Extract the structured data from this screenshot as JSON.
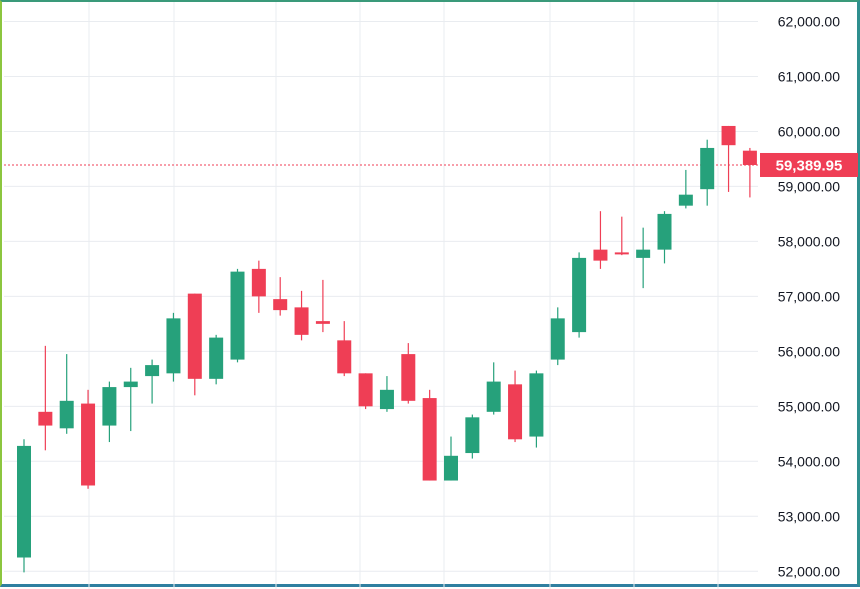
{
  "chart_data": {
    "type": "candlestick",
    "ylim": [
      51950,
      62100
    ],
    "y_ticks": [
      "62,000.00",
      "61,000.00",
      "60,000.00",
      "59,000.00",
      "58,000.00",
      "57,000.00",
      "56,000.00",
      "55,000.00",
      "54,000.00",
      "53,000.00",
      "52,000.00"
    ],
    "y_tick_values": [
      62000,
      61000,
      60000,
      59000,
      58000,
      57000,
      56000,
      55000,
      54000,
      53000,
      52000
    ],
    "last_price": {
      "value": 59389.95,
      "label": "59,389.95"
    },
    "grid": true,
    "colors": {
      "up": "#26a17b",
      "down": "#ef3e55",
      "grid": "#e9ecf0",
      "price_line": "#ef3e55"
    },
    "candles": [
      {
        "o": 52250,
        "h": 54400,
        "l": 51980,
        "c": 54280
      },
      {
        "o": 54900,
        "h": 56100,
        "l": 54200,
        "c": 54650
      },
      {
        "o": 54600,
        "h": 55950,
        "l": 54500,
        "c": 55100
      },
      {
        "o": 55050,
        "h": 55300,
        "l": 53500,
        "c": 53560
      },
      {
        "o": 54650,
        "h": 55450,
        "l": 54350,
        "c": 55350
      },
      {
        "o": 55350,
        "h": 55700,
        "l": 54550,
        "c": 55450
      },
      {
        "o": 55550,
        "h": 55850,
        "l": 55050,
        "c": 55750
      },
      {
        "o": 55600,
        "h": 56700,
        "l": 55450,
        "c": 56600
      },
      {
        "o": 57050,
        "h": 57050,
        "l": 55200,
        "c": 55500
      },
      {
        "o": 55500,
        "h": 56300,
        "l": 55400,
        "c": 56250
      },
      {
        "o": 55850,
        "h": 57500,
        "l": 55800,
        "c": 57450
      },
      {
        "o": 57500,
        "h": 57650,
        "l": 56700,
        "c": 57000
      },
      {
        "o": 56950,
        "h": 57350,
        "l": 56650,
        "c": 56750
      },
      {
        "o": 56800,
        "h": 57100,
        "l": 56200,
        "c": 56300
      },
      {
        "o": 56550,
        "h": 57300,
        "l": 56350,
        "c": 56500
      },
      {
        "o": 56200,
        "h": 56550,
        "l": 55550,
        "c": 55600
      },
      {
        "o": 55600,
        "h": 55600,
        "l": 54950,
        "c": 55000
      },
      {
        "o": 54950,
        "h": 55550,
        "l": 54900,
        "c": 55300
      },
      {
        "o": 55950,
        "h": 56150,
        "l": 55050,
        "c": 55100
      },
      {
        "o": 55150,
        "h": 55300,
        "l": 53650,
        "c": 53650
      },
      {
        "o": 53650,
        "h": 54450,
        "l": 53650,
        "c": 54100
      },
      {
        "o": 54150,
        "h": 54850,
        "l": 54050,
        "c": 54800
      },
      {
        "o": 54900,
        "h": 55800,
        "l": 54850,
        "c": 55450
      },
      {
        "o": 55400,
        "h": 55650,
        "l": 54350,
        "c": 54400
      },
      {
        "o": 54450,
        "h": 55650,
        "l": 54250,
        "c": 55600
      },
      {
        "o": 55850,
        "h": 56800,
        "l": 55750,
        "c": 56600
      },
      {
        "o": 56350,
        "h": 57800,
        "l": 56250,
        "c": 57700
      },
      {
        "o": 57850,
        "h": 58550,
        "l": 57500,
        "c": 57650
      },
      {
        "o": 57800,
        "h": 58450,
        "l": 57750,
        "c": 57780
      },
      {
        "o": 57700,
        "h": 58250,
        "l": 57150,
        "c": 57850
      },
      {
        "o": 57850,
        "h": 58550,
        "l": 57600,
        "c": 58500
      },
      {
        "o": 58650,
        "h": 59300,
        "l": 58600,
        "c": 58850
      },
      {
        "o": 58950,
        "h": 59850,
        "l": 58650,
        "c": 59700
      },
      {
        "o": 60100,
        "h": 60100,
        "l": 58900,
        "c": 59750
      },
      {
        "o": 59650,
        "h": 59700,
        "l": 58800,
        "c": 59390
      }
    ]
  }
}
